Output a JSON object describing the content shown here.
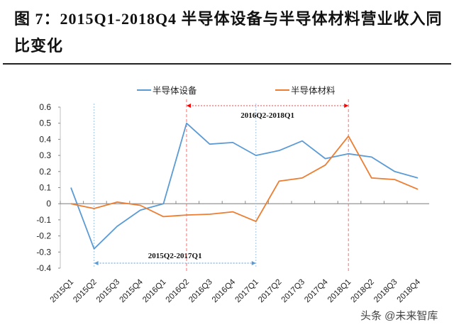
{
  "figure": {
    "title": "图 7：2015Q1-2018Q4 半导体设备与半导体材料营业收入同比变化"
  },
  "watermark": "头条 @未来智库",
  "chart_data": {
    "type": "line",
    "title": "2015Q1-2018Q4 半导体设备与半导体材料营业收入同比变化",
    "xlabel": "",
    "ylabel": "",
    "ylim": [
      -0.4,
      0.6
    ],
    "yticks": [
      "0.6",
      "0.5",
      "0.4",
      "0.3",
      "0.2",
      "0.1",
      "0",
      "-0.1",
      "-0.2",
      "-0.3",
      "-0.4"
    ],
    "grid": false,
    "legend_position": "top",
    "categories": [
      "2015Q1",
      "2015Q2",
      "2015Q3",
      "2015Q4",
      "2016Q1",
      "2016Q2",
      "2016Q3",
      "2016Q4",
      "2017Q1",
      "2017Q2",
      "2017Q3",
      "2017Q4",
      "2018Q1",
      "2018Q2",
      "2018Q3",
      "2018Q4"
    ],
    "series": [
      {
        "name": "半导体设备",
        "color": "#5b9bd5",
        "values": [
          0.1,
          -0.28,
          -0.14,
          -0.04,
          0.0,
          0.5,
          0.37,
          0.38,
          0.3,
          0.33,
          0.39,
          0.28,
          0.31,
          0.29,
          0.2,
          0.16
        ]
      },
      {
        "name": "半导体材料",
        "color": "#ed7d31",
        "values": [
          0.0,
          -0.03,
          0.01,
          -0.01,
          -0.08,
          -0.07,
          -0.065,
          -0.05,
          -0.11,
          0.14,
          0.16,
          0.24,
          0.42,
          0.16,
          0.15,
          0.09
        ]
      }
    ],
    "annotations": [
      {
        "label": "2015Q2-2017Q1",
        "from": "2015Q2",
        "to": "2017Q1",
        "color": "#5b9bd5"
      },
      {
        "label": "2016Q2-2018Q1",
        "from": "2016Q2",
        "to": "2018Q1",
        "color": "#ff0000"
      }
    ]
  }
}
